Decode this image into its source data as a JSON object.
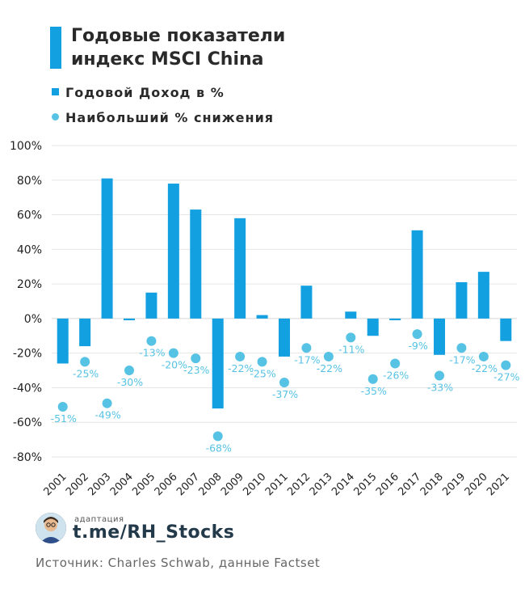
{
  "header": {
    "title_line1": "Годовые показатели",
    "title_line2": "индекс MSCI China"
  },
  "legend": {
    "bar_label": "Годовой Доход в %",
    "dot_label": "Наибольший % снижения"
  },
  "colors": {
    "bar": "#12a0e0",
    "dot": "#56c2e4",
    "dot_label": "#56c2e4",
    "grid": "#e6e6e6"
  },
  "chart_data": {
    "type": "bar",
    "categories": [
      "2001",
      "2002",
      "2003",
      "2004",
      "2005",
      "2006",
      "2007",
      "2008",
      "2009",
      "2010",
      "2011",
      "2012",
      "2013",
      "2014",
      "2015",
      "2016",
      "2017",
      "2018",
      "2019",
      "2020",
      "2021"
    ],
    "series": [
      {
        "name": "Годовой Доход в %",
        "type": "bar",
        "values": [
          -26,
          -16,
          81,
          -1,
          15,
          78,
          63,
          -52,
          58,
          2,
          -22,
          19,
          0,
          4,
          -10,
          -1,
          51,
          -21,
          21,
          27,
          -13
        ]
      },
      {
        "name": "Наибольший % снижения",
        "type": "scatter",
        "values": [
          -51,
          -25,
          -49,
          -30,
          -13,
          -20,
          -23,
          -68,
          -22,
          -25,
          -37,
          -17,
          -22,
          -11,
          -35,
          -26,
          -9,
          -33,
          -17,
          -22,
          -27
        ],
        "labels": [
          "-51%",
          "-25%",
          "-49%",
          "-30%",
          "-13%",
          "-20%",
          "-23%",
          "-68%",
          "-22%",
          "-25%",
          "-37%",
          "-17%",
          "-22%",
          "-11%",
          "-35%",
          "-26%",
          "-9%",
          "-33%",
          "-17%",
          "-22%",
          "-27%"
        ]
      }
    ],
    "ylim": [
      -80,
      100
    ],
    "yticks": [
      "100%",
      "80%",
      "60%",
      "40%",
      "20%",
      "0%",
      "-20%",
      "-40%",
      "-60%",
      "-80%"
    ],
    "grid": true
  },
  "footer": {
    "adaptation_label": "адаптация",
    "handle": "t.me/RH_Stocks",
    "source": "Источник: Charles Schwab, данные Factset"
  }
}
